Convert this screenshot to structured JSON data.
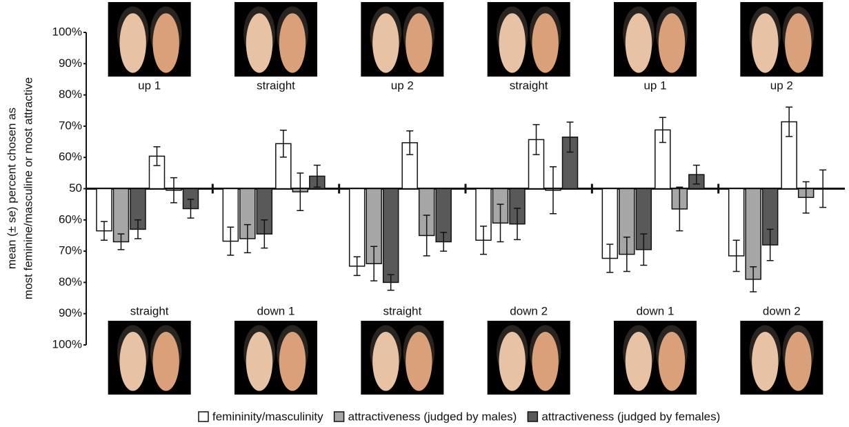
{
  "chart_data": {
    "type": "bar",
    "y_label": [
      "mean (± se) percent chosen as",
      "most feminine/masculine or most attractive"
    ],
    "categories": [
      "straight",
      "up 1",
      "down 1",
      "straight",
      "straight",
      "up 2",
      "down 2",
      "straight",
      "down 1",
      "up 1",
      "down 2",
      "up 2"
    ],
    "series": [
      {
        "name": "femininity/masculinity",
        "color": "#ffffff",
        "values": [
          36.5,
          60.4,
          33.2,
          64.4,
          25.2,
          64.7,
          33.5,
          65.7,
          27.7,
          68.8,
          28.5,
          71.4
        ],
        "errors": [
          3,
          3,
          4.5,
          4.3,
          3,
          3.8,
          4.5,
          4.8,
          4.5,
          4,
          5,
          4.7
        ]
      },
      {
        "name": "attractiveness (judged by males)",
        "color": "#a6a6a6",
        "values": [
          33,
          49.5,
          34,
          49,
          26,
          35,
          39,
          49.5,
          29,
          43.5,
          21,
          47.2
        ],
        "errors": [
          2.5,
          4,
          4.5,
          6,
          5.5,
          6.5,
          6,
          7.5,
          5.5,
          7,
          4,
          5
        ]
      },
      {
        "name": "attractiveness (judged by females)",
        "color": "#595959",
        "values": [
          37,
          43.6,
          35.5,
          54,
          20,
          33,
          38.7,
          66.5,
          30.5,
          54.5,
          32,
          50
        ],
        "errors": [
          3,
          3,
          4.5,
          3.5,
          2.5,
          3,
          5,
          4.8,
          5,
          3,
          5,
          6
        ]
      }
    ],
    "ylim": [
      0,
      100
    ],
    "yticks": [
      {
        "value": 0,
        "label": "100%"
      },
      {
        "value": 10,
        "label": "90%"
      },
      {
        "value": 20,
        "label": "80%"
      },
      {
        "value": 30,
        "label": "70%"
      },
      {
        "value": 40,
        "label": "60%"
      },
      50,
      {
        "value": 60,
        "label": "60%"
      },
      {
        "value": 70,
        "label": "70%"
      },
      {
        "value": 80,
        "label": "80%"
      },
      {
        "value": 90,
        "label": "90%"
      },
      {
        "value": 100,
        "label": "100%"
      }
    ]
  }
}
